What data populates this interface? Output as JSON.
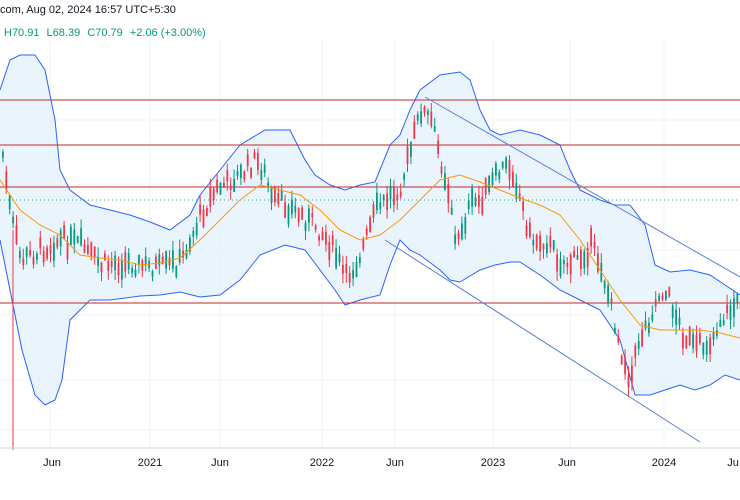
{
  "header": {
    "text": "com, Aug 02, 2024 16:57 UTC+5:30",
    "high": "H70.91",
    "low": "L68.39",
    "close": "C70.79",
    "change": "+2.06 (+3.00%)"
  },
  "colors": {
    "up": "#089981",
    "down": "#f23645",
    "bb": "#2962ff",
    "bb_fill": "#e3f0fc",
    "ma": "#ff9800",
    "hline": "#c62828",
    "channel": "#5b7fd6",
    "grid": "#f0f3fa",
    "dotted": "#22ab94"
  },
  "chart_data": {
    "type": "candlestick",
    "x_ticks": [
      "Jun",
      "2021",
      "Jun",
      "2022",
      "Jun",
      "2023",
      "Jun",
      "2024",
      "Ju"
    ],
    "indicators": [
      "Bollinger Bands",
      "Moving Average"
    ],
    "horizontal_levels_count": 4,
    "descending_channel": true,
    "last_close": 70.79,
    "last_high": 70.91,
    "last_low": 68.39,
    "change": 2.06,
    "change_percent": 3.0
  }
}
